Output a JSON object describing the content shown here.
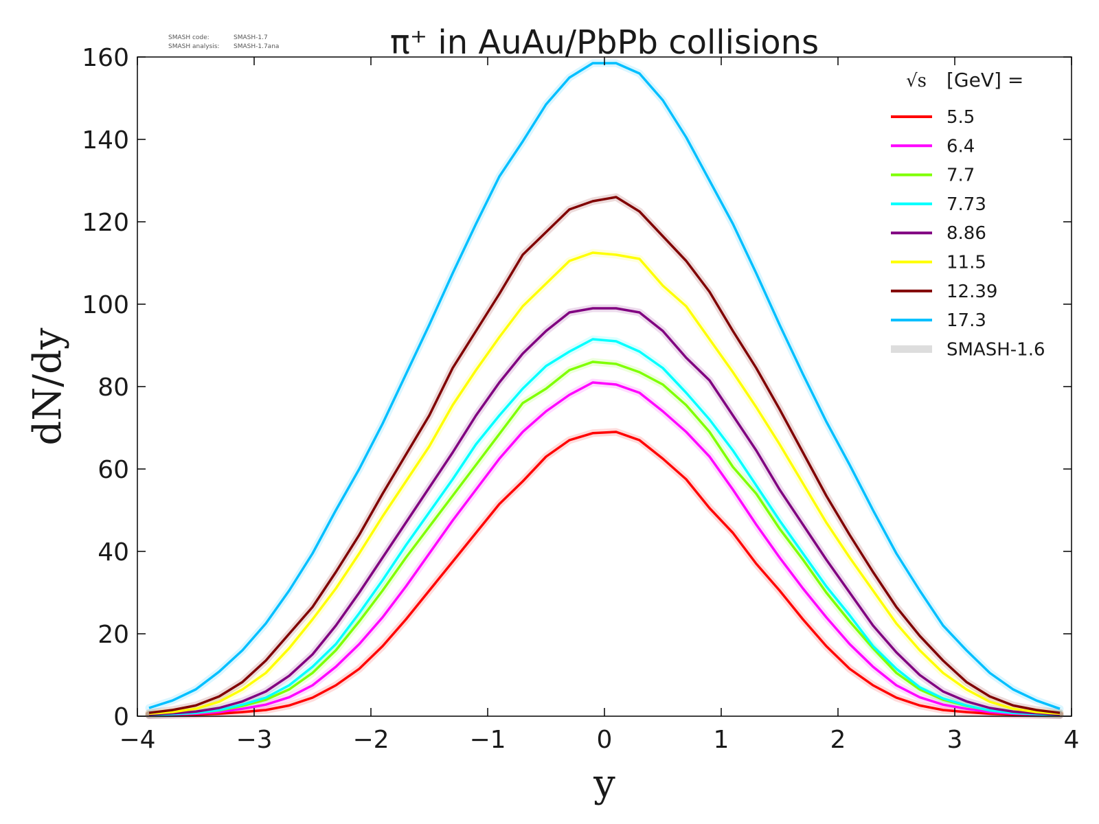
{
  "code_info": {
    "line1_label": "SMASH code:",
    "line1_value": "SMASH-1.7",
    "line2_label": "SMASH analysis:",
    "line2_value": "SMASH-1.7ana"
  },
  "chart_data": {
    "type": "line",
    "title": "π⁺ in AuAu/PbPb collisions",
    "xlabel": "y",
    "ylabel": "dN/dy",
    "xlim": [
      -4,
      4
    ],
    "ylim": [
      0,
      160
    ],
    "xticks": [
      -4,
      -3,
      -2,
      -1,
      0,
      1,
      2,
      3,
      4
    ],
    "xtick_labels": [
      "−4",
      "−3",
      "−2",
      "−1",
      "0",
      "1",
      "2",
      "3",
      "4"
    ],
    "yticks": [
      0,
      20,
      40,
      60,
      80,
      100,
      120,
      140,
      160
    ],
    "ytick_labels": [
      "0",
      "20",
      "40",
      "60",
      "80",
      "100",
      "120",
      "140",
      "160"
    ],
    "grid": false,
    "legend_placement": "top-right",
    "legend_title_prefix": "√s",
    "legend_title_suffix": "[GeV] =",
    "band_legend_label": "SMASH-1.6",
    "band_color": "#dddddd",
    "x": [
      -3.9,
      -3.7,
      -3.5,
      -3.3,
      -3.1,
      -2.9,
      -2.7,
      -2.5,
      -2.3,
      -2.1,
      -1.9,
      -1.7,
      -1.5,
      -1.3,
      -1.1,
      -0.9,
      -0.7,
      -0.5,
      -0.3,
      -0.1,
      0.1,
      0.3,
      0.5,
      0.7,
      0.9,
      1.1,
      1.3,
      1.5,
      1.7,
      1.9,
      2.1,
      2.3,
      2.5,
      2.7,
      2.9,
      3.1,
      3.3,
      3.5,
      3.7,
      3.9
    ],
    "series": [
      {
        "name": "5.5",
        "color": "#ff0000",
        "values": [
          0.2,
          0.3,
          0.4,
          0.6,
          1,
          1.5,
          2.6,
          4.5,
          7.5,
          11.5,
          17,
          23.5,
          30.5,
          37.5,
          44.5,
          51.5,
          57,
          63,
          67,
          68.7,
          69,
          67,
          62.5,
          57.5,
          50.5,
          44.5,
          37,
          30.5,
          23.5,
          17,
          11.5,
          7.5,
          4.5,
          2.6,
          1.5,
          1,
          0.6,
          0.4,
          0.3,
          0.2
        ]
      },
      {
        "name": "6.4",
        "color": "#ff00ff",
        "values": [
          0.3,
          0.4,
          0.6,
          1,
          1.8,
          2.8,
          4.6,
          7.5,
          12,
          17.5,
          24,
          31.5,
          39.5,
          47.5,
          55,
          62.5,
          69,
          74,
          78,
          81,
          80.5,
          78.5,
          74,
          69,
          63,
          55,
          46.5,
          38.5,
          31,
          24,
          17.5,
          12,
          7.5,
          4.6,
          2.8,
          1.8,
          1,
          0.6,
          0.4,
          0.3
        ]
      },
      {
        "name": "7.7",
        "color": "#7fff00",
        "values": [
          0.3,
          0.5,
          0.8,
          1.4,
          2.5,
          4,
          6.5,
          10.5,
          16,
          23,
          30.5,
          38.5,
          46,
          53.5,
          61,
          68.5,
          76,
          79.5,
          84,
          86,
          85.5,
          83.5,
          80.5,
          75.5,
          69,
          60.5,
          54,
          45.5,
          38,
          30,
          23,
          16.5,
          10.5,
          6.5,
          4,
          2.5,
          1.4,
          0.8,
          0.5,
          0.3
        ]
      },
      {
        "name": "7.73",
        "color": "#00ffff",
        "values": [
          0.3,
          0.5,
          0.8,
          1.5,
          2.8,
          4.5,
          7.5,
          12,
          17.5,
          25,
          33,
          41.5,
          49.5,
          57.5,
          66,
          73,
          79.5,
          85,
          88.5,
          91.5,
          91,
          88.5,
          84.5,
          78.5,
          72,
          64.5,
          56,
          47.5,
          39.5,
          31.5,
          24.5,
          17,
          11.5,
          7,
          4.3,
          2.6,
          1.4,
          0.8,
          0.5,
          0.3
        ]
      },
      {
        "name": "8.86",
        "color": "#800080",
        "values": [
          0.4,
          0.7,
          1.1,
          2,
          3.6,
          6,
          9.8,
          15,
          22,
          30,
          38.5,
          47,
          55.5,
          64,
          73,
          81,
          88,
          93.5,
          98,
          99,
          99,
          98,
          93.5,
          87,
          81.5,
          73,
          64.5,
          55,
          46.5,
          38,
          30,
          22,
          15.5,
          10,
          6,
          3.6,
          2,
          1.1,
          0.7,
          0.4
        ]
      },
      {
        "name": "11.5",
        "color": "#ffff00",
        "values": [
          0.6,
          1,
          1.8,
          3.5,
          6.5,
          10.5,
          16.5,
          23.5,
          31,
          39.5,
          48.5,
          57,
          65.5,
          75.5,
          84,
          92,
          99.5,
          105,
          110.5,
          112.5,
          112,
          111,
          104.5,
          99.5,
          91.5,
          83.5,
          75,
          66,
          56.5,
          47,
          38.5,
          30.5,
          22.5,
          16,
          10.5,
          6.5,
          3.5,
          1.8,
          1,
          0.6
        ]
      },
      {
        "name": "12.39",
        "color": "#800000",
        "values": [
          0.8,
          1.5,
          2.6,
          4.8,
          8.3,
          13.5,
          20,
          26.5,
          35,
          44,
          54,
          63.5,
          73,
          84.5,
          93.5,
          102.5,
          112,
          117.5,
          123,
          125,
          126,
          122.5,
          116.5,
          110.5,
          103,
          93.5,
          84.5,
          74.5,
          64,
          53.5,
          44,
          35,
          26.5,
          19.5,
          13.5,
          8.3,
          4.8,
          2.6,
          1.5,
          0.8
        ]
      },
      {
        "name": "17.3",
        "color": "#00bfff",
        "values": [
          2,
          3.8,
          6.5,
          10.8,
          16,
          22.5,
          30.5,
          39.5,
          50,
          60,
          71,
          83,
          95,
          107.5,
          119.5,
          131,
          139.5,
          148.5,
          155,
          158.5,
          158.5,
          156,
          149.5,
          140.5,
          130,
          119.5,
          107.5,
          95,
          83,
          71.5,
          61,
          50,
          39.5,
          30.5,
          22,
          16,
          10.5,
          6.5,
          3.8,
          1.8
        ]
      }
    ]
  }
}
